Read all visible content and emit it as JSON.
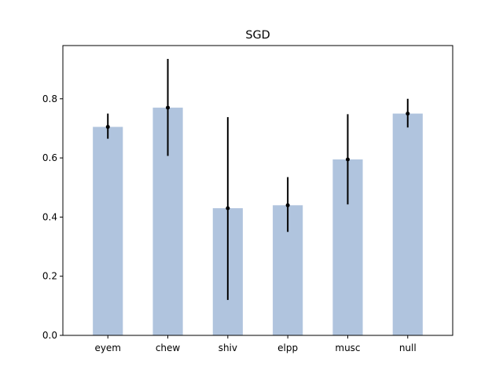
{
  "chart_data": {
    "type": "bar",
    "title": "SGD",
    "xlabel": "",
    "ylabel": "",
    "categories": [
      "eyem",
      "chew",
      "shiv",
      "elpp",
      "musc",
      "null"
    ],
    "values": [
      0.705,
      0.77,
      0.43,
      0.44,
      0.595,
      0.75
    ],
    "error_low": [
      0.665,
      0.607,
      0.12,
      0.35,
      0.443,
      0.703
    ],
    "error_high": [
      0.75,
      0.935,
      0.738,
      0.535,
      0.748,
      0.8
    ],
    "ylim": [
      0,
      0.98
    ],
    "yticks": [
      "0.0",
      "0.2",
      "0.4",
      "0.6",
      "0.8"
    ],
    "ytick_values": [
      0,
      0.2,
      0.4,
      0.6,
      0.8
    ],
    "grid": false,
    "bar_color": "#b0c4de",
    "error_color": "#000000"
  }
}
